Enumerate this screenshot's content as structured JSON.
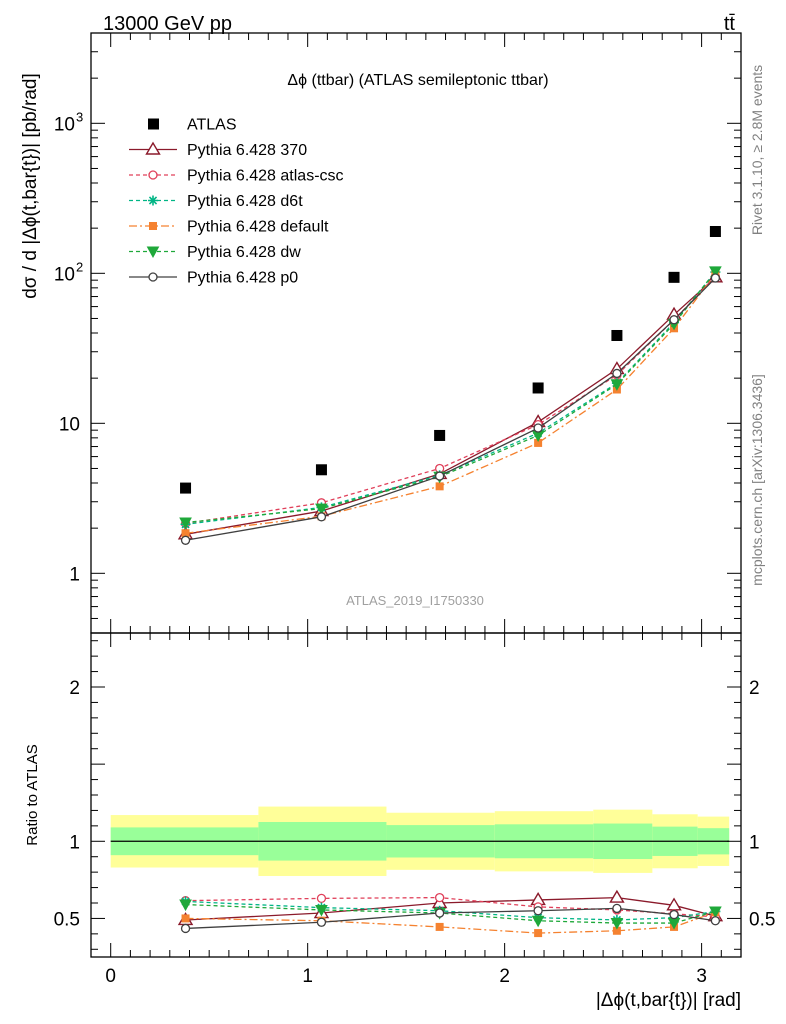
{
  "header": {
    "left": "13000 GeV pp",
    "right": "tt̄",
    "side_top": "Rivet 3.1.10, ≥ 2.8M events",
    "side_bottom": "mcplots.cern.ch [arXiv:1306.3436]"
  },
  "chart_data": [
    {
      "type": "line",
      "title": "Δϕ (ttbar) (ATLAS semileptonic ttbar)",
      "ylabel": "dσ / d |Δϕ(t,bar{t})| [pb/rad]",
      "xlabel": "",
      "analysis_tag": "ATLAS_2019_I1750330",
      "yscale": "log",
      "xlim": [
        -0.1,
        3.2
      ],
      "ylim": [
        0.4,
        4000
      ],
      "ytick_labels": [
        {
          "value": 1,
          "label": "1"
        },
        {
          "value": 10,
          "label": "10"
        },
        {
          "value": 100,
          "label": "10",
          "sup": "2"
        },
        {
          "value": 1000,
          "label": "10",
          "sup": "3"
        }
      ],
      "x": [
        0.38,
        1.07,
        1.67,
        2.17,
        2.57,
        2.86,
        3.07
      ],
      "data": {
        "name": "ATLAS",
        "values": [
          3.7,
          4.9,
          8.3,
          17.2,
          38.5,
          94,
          190
        ]
      },
      "series": [
        {
          "name": "Pythia 6.428 370",
          "color": "#8b1a2b",
          "dash": "",
          "marker": "triangle-open",
          "values": [
            1.82,
            2.6,
            4.6,
            10.2,
            23,
            53,
            94
          ]
        },
        {
          "name": "Pythia 6.428 atlas-csc",
          "color": "#e0405a",
          "dash": "4,3",
          "marker": "circle-open",
          "values": [
            2.15,
            2.95,
            5.0,
            9.8,
            21,
            49,
            95
          ]
        },
        {
          "name": "Pythia 6.428 d6t",
          "color": "#00b585",
          "dash": "4,3",
          "marker": "star",
          "values": [
            2.12,
            2.75,
            4.5,
            8.6,
            18.5,
            47,
            102
          ]
        },
        {
          "name": "Pythia 6.428 default",
          "color": "#f58230",
          "dash": "8,3,2,3",
          "marker": "square-filled",
          "values": [
            1.85,
            2.4,
            3.8,
            7.4,
            16.8,
            43,
            99
          ]
        },
        {
          "name": "Pythia 6.428 dw",
          "color": "#1fa83a",
          "dash": "4,3",
          "marker": "triangle-down-filled",
          "values": [
            2.18,
            2.7,
            4.4,
            8.3,
            18.2,
            46,
            103
          ]
        },
        {
          "name": "Pythia 6.428 p0",
          "color": "#404040",
          "dash": "",
          "marker": "circle-open",
          "values": [
            1.66,
            2.38,
            4.45,
            9.3,
            21.5,
            49,
            93
          ]
        }
      ]
    },
    {
      "type": "line",
      "ylabel": "Ratio to ATLAS",
      "xlabel": "|Δϕ(t,bar{t})| [rad]",
      "xlim": [
        -0.1,
        3.2
      ],
      "ylim": [
        0.25,
        2.35
      ],
      "xtick_labels": [
        "0",
        "1",
        "2",
        "3"
      ],
      "ytick_labels": [
        "0.5",
        "1",
        "2"
      ],
      "bin_edges": [
        0.0,
        0.75,
        1.4,
        1.95,
        2.45,
        2.75,
        2.98,
        3.14
      ],
      "band_inner": [
        0.09,
        0.125,
        0.105,
        0.11,
        0.115,
        0.095,
        0.085
      ],
      "band_outer": [
        0.17,
        0.225,
        0.185,
        0.195,
        0.205,
        0.175,
        0.16
      ],
      "band_colors": {
        "outer": "#ffff99",
        "inner": "#99ff99"
      },
      "reference": 1,
      "x": [
        0.38,
        1.07,
        1.67,
        2.17,
        2.57,
        2.86,
        3.07
      ],
      "series": [
        {
          "name": "Pythia 6.428 370",
          "values": [
            0.49,
            0.535,
            0.6,
            0.62,
            0.635,
            0.585,
            0.515
          ]
        },
        {
          "name": "Pythia 6.428 atlas-csc",
          "values": [
            0.615,
            0.63,
            0.635,
            0.575,
            0.555,
            0.53,
            0.51
          ]
        },
        {
          "name": "Pythia 6.428 d6t",
          "values": [
            0.61,
            0.57,
            0.55,
            0.505,
            0.49,
            0.505,
            0.545
          ]
        },
        {
          "name": "Pythia 6.428 default",
          "values": [
            0.5,
            0.485,
            0.445,
            0.405,
            0.42,
            0.445,
            0.54
          ]
        },
        {
          "name": "Pythia 6.428 dw",
          "values": [
            0.59,
            0.555,
            0.535,
            0.485,
            0.47,
            0.47,
            0.545
          ]
        },
        {
          "name": "Pythia 6.428 p0",
          "values": [
            0.435,
            0.475,
            0.535,
            0.55,
            0.565,
            0.525,
            0.485
          ]
        }
      ]
    }
  ]
}
